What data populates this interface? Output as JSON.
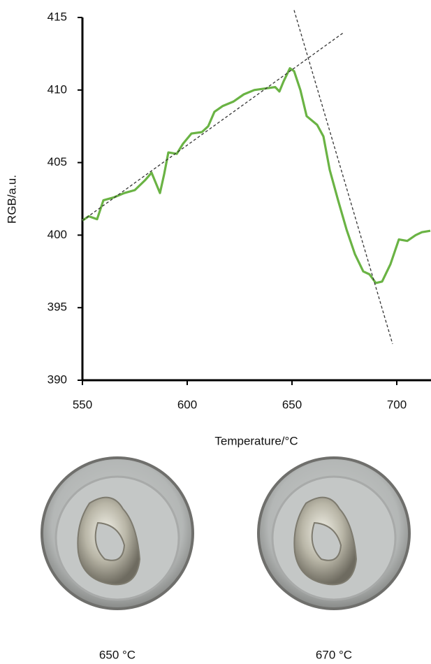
{
  "chart_data": {
    "type": "line",
    "x_label": "Temperature/°C",
    "y_label": "RGB/a.u.",
    "xlim": [
      550,
      716
    ],
    "ylim": [
      390,
      415
    ],
    "xticks": [
      550,
      600,
      650,
      700
    ],
    "yticks": [
      390,
      395,
      400,
      405,
      410,
      415
    ],
    "series": [
      {
        "color": "#6ab344",
        "style": "solid",
        "x": [
          550,
          553,
          557,
          560,
          565,
          570,
          575,
          580,
          583,
          585,
          587,
          589,
          591,
          595,
          598,
          602,
          607,
          610,
          613,
          617,
          622,
          627,
          632,
          637,
          642,
          644,
          646,
          649,
          651,
          654,
          657,
          662,
          665,
          668,
          672,
          676,
          680,
          684,
          687,
          690,
          693,
          697,
          701,
          705,
          709,
          712,
          716
        ],
        "values": [
          401.0,
          401.3,
          401.1,
          402.4,
          402.6,
          402.9,
          403.1,
          403.8,
          404.3,
          403.6,
          402.9,
          404.2,
          405.7,
          405.6,
          406.3,
          407.0,
          407.1,
          407.5,
          408.5,
          408.9,
          409.2,
          409.7,
          410.0,
          410.1,
          410.2,
          409.9,
          410.6,
          411.5,
          411.3,
          410.0,
          408.2,
          407.6,
          406.8,
          404.5,
          402.4,
          400.4,
          398.7,
          397.5,
          397.3,
          396.7,
          396.8,
          398.0,
          399.7,
          399.6,
          400.0,
          400.2,
          400.3
        ]
      },
      {
        "color": "#333333",
        "style": "dashed",
        "x": [
          550,
          675
        ],
        "values": [
          401.0,
          414.0
        ]
      },
      {
        "color": "#333333",
        "style": "dashed",
        "x": [
          651,
          698
        ],
        "values": [
          415.5,
          392.5
        ]
      }
    ]
  },
  "photos": [
    {
      "caption": "650 °C"
    },
    {
      "caption": "670 °C"
    }
  ]
}
